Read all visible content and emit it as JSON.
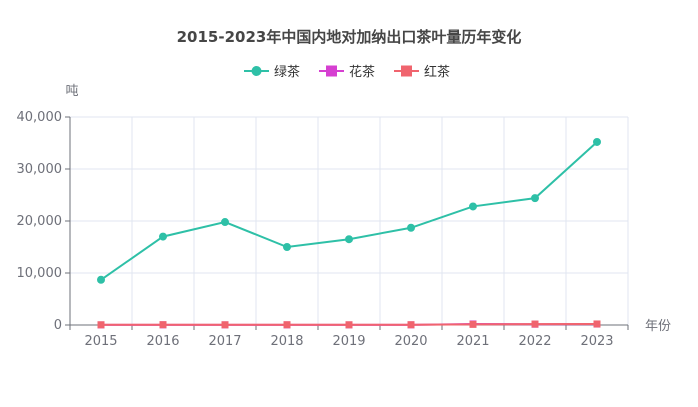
{
  "chart_data": {
    "type": "line",
    "title": "2015-2023年中国内地对加纳出口茶叶量历年变化",
    "xlabel": "年份",
    "ylabel": "吨",
    "categories": [
      "2015",
      "2016",
      "2017",
      "2018",
      "2019",
      "2020",
      "2021",
      "2022",
      "2023"
    ],
    "ylim": [
      0,
      40000
    ],
    "yticks": [
      0,
      10000,
      20000,
      30000,
      40000
    ],
    "grid": true,
    "legend_position": "top-center",
    "series": [
      {
        "name": "绿茶",
        "color": "#2ec0a7",
        "marker": "circle",
        "values": [
          8700,
          17000,
          19800,
          15000,
          16500,
          18700,
          22800,
          24400,
          35200
        ]
      },
      {
        "name": "花茶",
        "color": "#d63fd1",
        "marker": "square",
        "values": [
          20,
          30,
          25,
          25,
          20,
          30,
          200,
          150,
          180
        ]
      },
      {
        "name": "红茶",
        "color": "#f0646e",
        "marker": "square",
        "values": [
          40,
          60,
          40,
          50,
          40,
          50,
          120,
          180,
          200
        ]
      }
    ]
  }
}
